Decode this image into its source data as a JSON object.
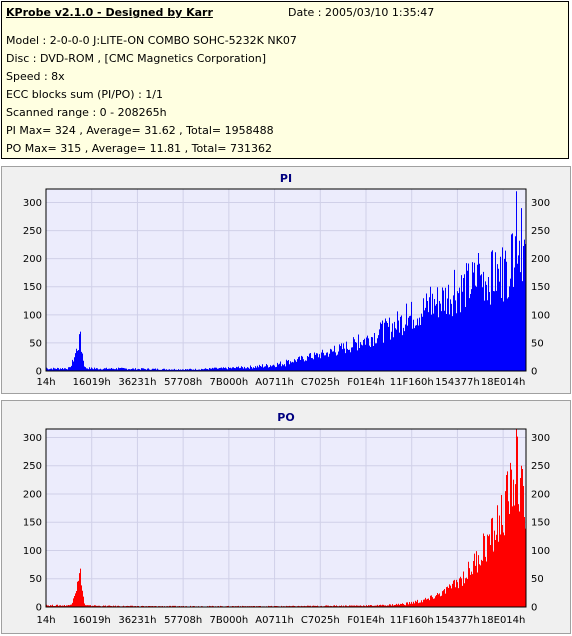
{
  "info": {
    "title": "KProbe v2.1.0 - Designed by Karr",
    "date": "Date : 2005/03/10 1:35:47",
    "lines": [
      "Model : 2-0-0-0 J:LITE-ON COMBO SOHC-5232K NK07",
      "Disc : DVD-ROM ,  [CMC Magnetics Corporation]",
      "Speed : 8x",
      "ECC blocks sum (PI/PO) : 1/1",
      "Scanned range : 0 - 208265h",
      "PI Max= 324 , Average= 31.62 , Total= 1958488",
      "PO Max= 315 , Average= 11.81 , Total= 731362"
    ]
  },
  "chart_data": [
    {
      "type": "area",
      "title": "PI",
      "color": "#0000ff",
      "ylim": [
        0,
        324
      ],
      "yticks": [
        0,
        50,
        100,
        150,
        200,
        250,
        300
      ],
      "xticklabels": [
        "14h",
        "16019h",
        "36231h",
        "57708h",
        "7B000h",
        "A0711h",
        "C7025h",
        "F01E4h",
        "11F160h",
        "154377h",
        "18E014h"
      ],
      "series": [
        {
          "x_fraction": [
            0,
            0.05,
            0.07,
            0.08,
            0.1,
            0.15,
            0.2,
            0.3,
            0.35,
            0.4,
            0.45,
            0.5,
            0.55,
            0.6,
            0.65,
            0.7,
            0.75,
            0.8,
            0.85,
            0.9,
            0.93,
            0.95,
            0.97,
            0.98,
            0.99,
            1.0
          ],
          "values": [
            6,
            7,
            70,
            8,
            6,
            6,
            5,
            4,
            6,
            8,
            12,
            20,
            32,
            45,
            65,
            90,
            120,
            150,
            180,
            210,
            215,
            220,
            245,
            320,
            290,
            255
          ]
        }
      ]
    },
    {
      "type": "area",
      "title": "PO",
      "color": "#ff0000",
      "ylim": [
        0,
        315
      ],
      "yticks": [
        0,
        50,
        100,
        150,
        200,
        250,
        300
      ],
      "xticklabels": [
        "14h",
        "16019h",
        "36231h",
        "57708h",
        "7B000h",
        "A0711h",
        "C7025h",
        "F01E4h",
        "11F160h",
        "154377h",
        "18E014h"
      ],
      "series": [
        {
          "x_fraction": [
            0,
            0.05,
            0.07,
            0.08,
            0.1,
            0.2,
            0.3,
            0.4,
            0.5,
            0.6,
            0.7,
            0.75,
            0.8,
            0.84,
            0.88,
            0.91,
            0.94,
            0.96,
            0.98,
            0.99,
            1.0
          ],
          "values": [
            4,
            4,
            68,
            4,
            3,
            2,
            2,
            2,
            2,
            3,
            4,
            8,
            20,
            40,
            80,
            130,
            180,
            240,
            315,
            250,
            240
          ]
        }
      ]
    }
  ]
}
